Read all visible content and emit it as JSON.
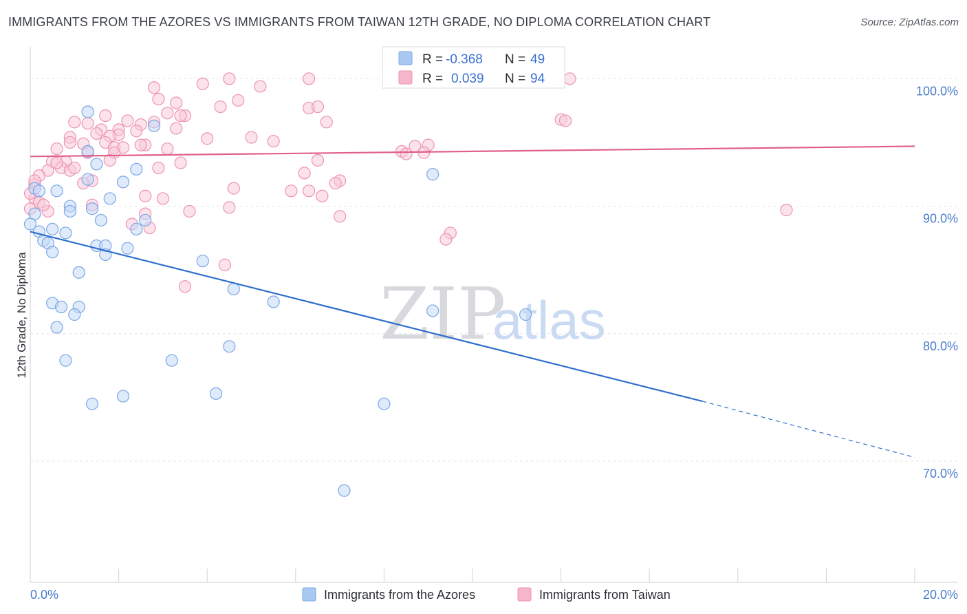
{
  "header": {
    "title": "IMMIGRANTS FROM THE AZORES VS IMMIGRANTS FROM TAIWAN 12TH GRADE, NO DIPLOMA CORRELATION CHART",
    "source": "Source: ZipAtlas.com"
  },
  "watermark": {
    "zip": "ZIP",
    "atlas": "atlas"
  },
  "legend_box": {
    "rows": [
      {
        "r_label": "R =",
        "r_value": "-0.368",
        "n_label": "N =",
        "n_value": "49",
        "color": "#a9c8f2"
      },
      {
        "r_label": "R =",
        "r_value": "0.039",
        "n_label": "N =",
        "n_value": "94",
        "color": "#f6b6ca"
      }
    ]
  },
  "bottom_legend": [
    {
      "label": "Immigrants from the Azores",
      "color": "#a9c8f2"
    },
    {
      "label": "Immigrants from Taiwan",
      "color": "#f6b6ca"
    }
  ],
  "chart_data": {
    "type": "scatter",
    "ylabel": "12th Grade, No Diploma",
    "xlabel": "",
    "xlim": [
      0,
      20
    ],
    "ylim": [
      60.5,
      102.5
    ],
    "x_ticks": [
      {
        "value": 0,
        "label": "0.0%"
      },
      {
        "value": 20,
        "label": "20.0%"
      }
    ],
    "y_ticks": [
      {
        "value": 100,
        "label": "100.0%"
      },
      {
        "value": 90,
        "label": "90.0%"
      },
      {
        "value": 80,
        "label": "80.0%"
      },
      {
        "value": 70,
        "label": "70.0%"
      }
    ],
    "grid": true,
    "series": [
      {
        "name": "Immigrants from the Azores",
        "color": "#7aa7e6",
        "fill": "#c4d9f5",
        "trend": {
          "x0": 0,
          "y0": 88.0,
          "x1": 15.2,
          "y1": 74.7,
          "dash_to_x": 20,
          "dash_to_y": 70.3,
          "color": "#2f6fcc"
        },
        "points": [
          [
            1.3,
            97.4
          ],
          [
            2.8,
            96.3
          ],
          [
            1.3,
            94.3
          ],
          [
            1.5,
            93.3
          ],
          [
            2.4,
            92.9
          ],
          [
            0.1,
            91.4
          ],
          [
            1.3,
            92.1
          ],
          [
            2.1,
            91.9
          ],
          [
            0.2,
            91.2
          ],
          [
            0.6,
            91.2
          ],
          [
            1.8,
            90.6
          ],
          [
            0.9,
            90.0
          ],
          [
            1.4,
            89.8
          ],
          [
            0.9,
            89.6
          ],
          [
            0.1,
            89.4
          ],
          [
            1.6,
            88.9
          ],
          [
            2.6,
            88.9
          ],
          [
            0.0,
            88.6
          ],
          [
            0.5,
            88.2
          ],
          [
            2.4,
            88.2
          ],
          [
            0.2,
            88.0
          ],
          [
            0.8,
            87.9
          ],
          [
            0.3,
            87.3
          ],
          [
            0.4,
            87.1
          ],
          [
            1.5,
            86.9
          ],
          [
            1.7,
            86.9
          ],
          [
            2.2,
            86.7
          ],
          [
            0.5,
            86.4
          ],
          [
            1.7,
            86.2
          ],
          [
            3.9,
            85.7
          ],
          [
            1.1,
            84.8
          ],
          [
            4.6,
            83.5
          ],
          [
            0.5,
            82.4
          ],
          [
            5.5,
            82.5
          ],
          [
            0.7,
            82.1
          ],
          [
            1.1,
            82.1
          ],
          [
            9.1,
            81.8
          ],
          [
            11.2,
            81.5
          ],
          [
            1.0,
            81.5
          ],
          [
            0.6,
            80.5
          ],
          [
            4.5,
            79.0
          ],
          [
            0.8,
            77.9
          ],
          [
            3.2,
            77.9
          ],
          [
            4.2,
            75.3
          ],
          [
            2.1,
            75.1
          ],
          [
            1.4,
            74.5
          ],
          [
            8.0,
            74.5
          ],
          [
            9.1,
            92.5
          ],
          [
            7.1,
            67.7
          ]
        ]
      },
      {
        "name": "Immigrants from Taiwan",
        "color": "#ee93b1",
        "fill": "#f8cbda",
        "trend": {
          "x0": 0,
          "y0": 93.9,
          "x1": 20,
          "y1": 94.7,
          "color": "#e0608a"
        },
        "points": [
          [
            4.5,
            100.0
          ],
          [
            6.3,
            100.0
          ],
          [
            12.2,
            100.0
          ],
          [
            3.9,
            99.6
          ],
          [
            5.2,
            99.4
          ],
          [
            2.8,
            99.3
          ],
          [
            4.7,
            98.3
          ],
          [
            2.9,
            98.4
          ],
          [
            3.3,
            98.1
          ],
          [
            6.3,
            97.7
          ],
          [
            6.5,
            97.8
          ],
          [
            4.3,
            97.8
          ],
          [
            3.1,
            97.3
          ],
          [
            3.5,
            97.1
          ],
          [
            1.7,
            97.1
          ],
          [
            3.4,
            97.1
          ],
          [
            1.0,
            96.6
          ],
          [
            1.3,
            96.5
          ],
          [
            2.2,
            96.7
          ],
          [
            2.8,
            96.6
          ],
          [
            6.7,
            96.6
          ],
          [
            2.5,
            96.4
          ],
          [
            12.0,
            96.8
          ],
          [
            12.1,
            96.7
          ],
          [
            3.3,
            96.1
          ],
          [
            2.0,
            96.0
          ],
          [
            1.6,
            96.0
          ],
          [
            2.4,
            95.9
          ],
          [
            1.5,
            95.7
          ],
          [
            2.0,
            95.6
          ],
          [
            1.8,
            95.5
          ],
          [
            0.9,
            95.4
          ],
          [
            4.0,
            95.3
          ],
          [
            5.0,
            95.4
          ],
          [
            0.9,
            95.0
          ],
          [
            5.5,
            95.1
          ],
          [
            1.7,
            95.0
          ],
          [
            1.2,
            94.9
          ],
          [
            2.6,
            94.8
          ],
          [
            1.9,
            94.6
          ],
          [
            2.1,
            94.6
          ],
          [
            2.5,
            94.8
          ],
          [
            0.6,
            94.5
          ],
          [
            3.1,
            94.5
          ],
          [
            8.7,
            94.7
          ],
          [
            9.0,
            94.8
          ],
          [
            1.3,
            94.2
          ],
          [
            1.9,
            94.2
          ],
          [
            8.4,
            94.3
          ],
          [
            8.5,
            94.1
          ],
          [
            8.9,
            94.2
          ],
          [
            1.8,
            93.6
          ],
          [
            0.5,
            93.5
          ],
          [
            0.8,
            93.5
          ],
          [
            3.4,
            93.4
          ],
          [
            6.5,
            93.6
          ],
          [
            2.9,
            93.0
          ],
          [
            0.7,
            93.0
          ],
          [
            0.9,
            92.8
          ],
          [
            0.4,
            92.8
          ],
          [
            0.2,
            92.4
          ],
          [
            6.2,
            92.6
          ],
          [
            1.4,
            92.0
          ],
          [
            7.0,
            92.0
          ],
          [
            6.9,
            91.8
          ],
          [
            1.2,
            91.8
          ],
          [
            0.1,
            91.7
          ],
          [
            4.6,
            91.4
          ],
          [
            5.9,
            91.2
          ],
          [
            6.3,
            91.2
          ],
          [
            6.6,
            90.8
          ],
          [
            3.0,
            90.6
          ],
          [
            2.6,
            90.8
          ],
          [
            0.1,
            90.6
          ],
          [
            0.2,
            90.3
          ],
          [
            1.4,
            90.1
          ],
          [
            4.5,
            89.9
          ],
          [
            3.6,
            89.6
          ],
          [
            2.6,
            89.4
          ],
          [
            7.0,
            89.2
          ],
          [
            0.4,
            89.6
          ],
          [
            17.1,
            89.7
          ],
          [
            2.3,
            88.6
          ],
          [
            2.7,
            88.3
          ],
          [
            9.5,
            87.9
          ],
          [
            9.4,
            87.4
          ],
          [
            4.4,
            85.4
          ],
          [
            3.5,
            83.7
          ],
          [
            0.3,
            90.1
          ],
          [
            0.0,
            89.8
          ],
          [
            0.6,
            93.4
          ],
          [
            1.0,
            93.0
          ],
          [
            0.1,
            92.0
          ],
          [
            0.0,
            91.0
          ]
        ]
      }
    ]
  }
}
